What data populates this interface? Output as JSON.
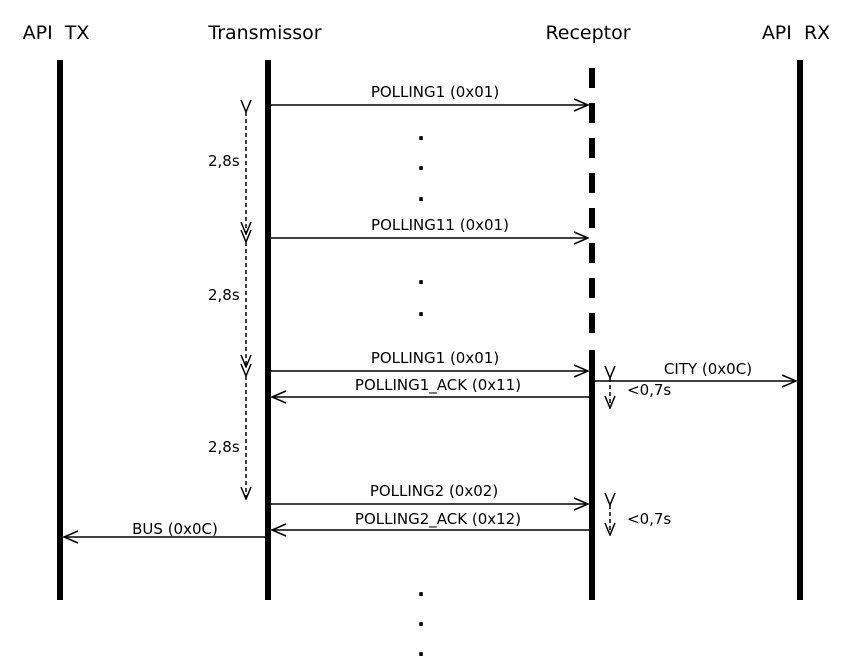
{
  "actors": {
    "api_tx": "API  TX",
    "transmissor": "Transmissor",
    "receptor": "Receptor",
    "api_rx": "API  RX"
  },
  "messages": {
    "m1": "POLLING1 (0x01)",
    "m2": "POLLING11 (0x01)",
    "m3": "POLLING1 (0x01)",
    "m4": "POLLING1_ACK (0x11)",
    "m5": "CITY (0x0C)",
    "m6": "POLLING2 (0x02)",
    "m7": "POLLING2_ACK (0x12)",
    "m8": "BUS (0x0C)"
  },
  "durations": {
    "d1": "2,8s",
    "d2": "2,8s",
    "d3": "2,8s",
    "r1": "<0,7s",
    "r2": "<0,7s"
  },
  "ellipsis": "."
}
